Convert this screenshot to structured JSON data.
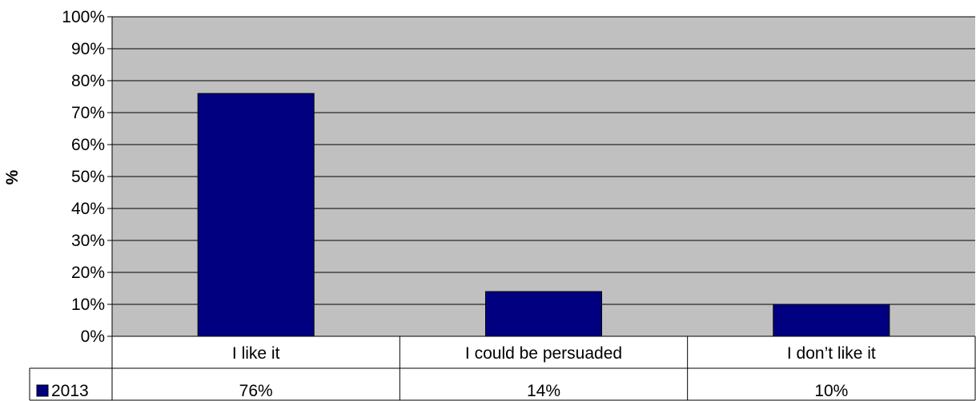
{
  "chart_data": {
    "type": "bar",
    "categories": [
      "I like it",
      "I could be persuaded",
      "I don’t like it"
    ],
    "series": [
      {
        "name": "2013",
        "values": [
          76,
          14,
          10
        ],
        "labels": [
          "76%",
          "14%",
          "10%"
        ]
      }
    ],
    "ylabel": "%",
    "ylim": [
      0,
      100
    ],
    "yticks": [
      "0%",
      "10%",
      "20%",
      "30%",
      "40%",
      "50%",
      "60%",
      "70%",
      "80%",
      "90%",
      "100%"
    ],
    "grid": true,
    "data_table": true,
    "colors": {
      "bar": "#000080",
      "plot_background": "#c0c0c0",
      "gridline": "#000000"
    }
  }
}
